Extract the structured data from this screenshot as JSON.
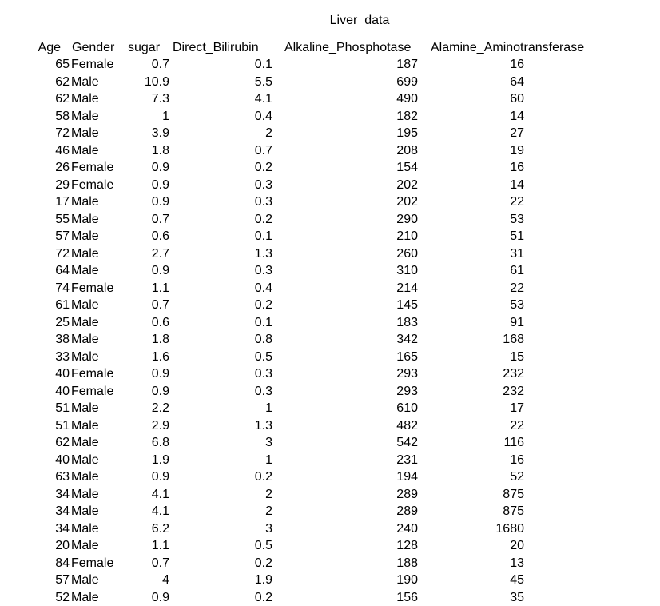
{
  "document": {
    "title": "Liver_data"
  },
  "table": {
    "headers": [
      "Age",
      "Gender",
      "sugar",
      "Direct_Bilirubin",
      "Alkaline_Phosphotase",
      "Alamine_Aminotransferase"
    ],
    "rows": [
      [
        "65",
        "Female",
        "0.7",
        "0.1",
        "187",
        "16"
      ],
      [
        "62",
        "Male",
        "10.9",
        "5.5",
        "699",
        "64"
      ],
      [
        "62",
        "Male",
        "7.3",
        "4.1",
        "490",
        "60"
      ],
      [
        "58",
        "Male",
        "1",
        "0.4",
        "182",
        "14"
      ],
      [
        "72",
        "Male",
        "3.9",
        "2",
        "195",
        "27"
      ],
      [
        "46",
        "Male",
        "1.8",
        "0.7",
        "208",
        "19"
      ],
      [
        "26",
        "Female",
        "0.9",
        "0.2",
        "154",
        "16"
      ],
      [
        "29",
        "Female",
        "0.9",
        "0.3",
        "202",
        "14"
      ],
      [
        "17",
        "Male",
        "0.9",
        "0.3",
        "202",
        "22"
      ],
      [
        "55",
        "Male",
        "0.7",
        "0.2",
        "290",
        "53"
      ],
      [
        "57",
        "Male",
        "0.6",
        "0.1",
        "210",
        "51"
      ],
      [
        "72",
        "Male",
        "2.7",
        "1.3",
        "260",
        "31"
      ],
      [
        "64",
        "Male",
        "0.9",
        "0.3",
        "310",
        "61"
      ],
      [
        "74",
        "Female",
        "1.1",
        "0.4",
        "214",
        "22"
      ],
      [
        "61",
        "Male",
        "0.7",
        "0.2",
        "145",
        "53"
      ],
      [
        "25",
        "Male",
        "0.6",
        "0.1",
        "183",
        "91"
      ],
      [
        "38",
        "Male",
        "1.8",
        "0.8",
        "342",
        "168"
      ],
      [
        "33",
        "Male",
        "1.6",
        "0.5",
        "165",
        "15"
      ],
      [
        "40",
        "Female",
        "0.9",
        "0.3",
        "293",
        "232"
      ],
      [
        "40",
        "Female",
        "0.9",
        "0.3",
        "293",
        "232"
      ],
      [
        "51",
        "Male",
        "2.2",
        "1",
        "610",
        "17"
      ],
      [
        "51",
        "Male",
        "2.9",
        "1.3",
        "482",
        "22"
      ],
      [
        "62",
        "Male",
        "6.8",
        "3",
        "542",
        "116"
      ],
      [
        "40",
        "Male",
        "1.9",
        "1",
        "231",
        "16"
      ],
      [
        "63",
        "Male",
        "0.9",
        "0.2",
        "194",
        "52"
      ],
      [
        "34",
        "Male",
        "4.1",
        "2",
        "289",
        "875"
      ],
      [
        "34",
        "Male",
        "4.1",
        "2",
        "289",
        "875"
      ],
      [
        "34",
        "Male",
        "6.2",
        "3",
        "240",
        "1680"
      ],
      [
        "20",
        "Male",
        "1.1",
        "0.5",
        "128",
        "20"
      ],
      [
        "84",
        "Female",
        "0.7",
        "0.2",
        "188",
        "13"
      ],
      [
        "57",
        "Male",
        "4",
        "1.9",
        "190",
        "45"
      ],
      [
        "52",
        "Male",
        "0.9",
        "0.2",
        "156",
        "35"
      ]
    ]
  }
}
